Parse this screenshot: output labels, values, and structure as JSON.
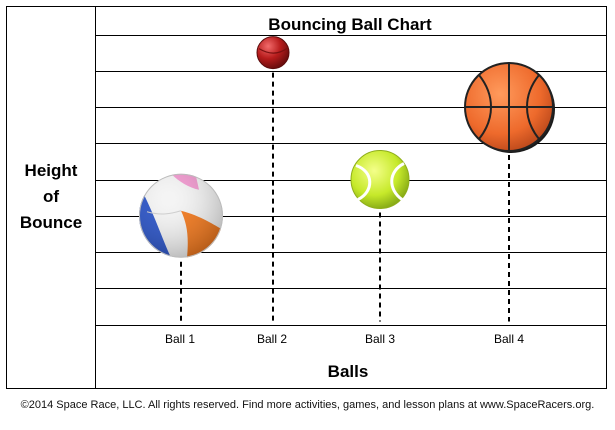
{
  "chart_data": {
    "type": "scatter",
    "title": "Bouncing Ball Chart",
    "xlabel": "Balls",
    "ylabel_lines": [
      "Height",
      "of",
      "Bounce"
    ],
    "categories": [
      "Ball 1",
      "Ball 2",
      "Ball 3",
      "Ball 4"
    ],
    "values": [
      3,
      7.5,
      4,
      6
    ],
    "ylim": [
      0,
      8
    ],
    "grid": true,
    "markers": [
      "beach-ball",
      "red-ball",
      "tennis-ball",
      "basketball"
    ]
  },
  "footer": "©2014 Space Race, LLC. All rights reserved. Find more activities, games, and lesson plans at www.SpaceRacers.org.",
  "colors": {
    "frame": "#000000",
    "grid": "#000000",
    "red_ball": "#b71c1c",
    "tennis": "#c6e92a",
    "basketball": "#ee6a2c"
  }
}
